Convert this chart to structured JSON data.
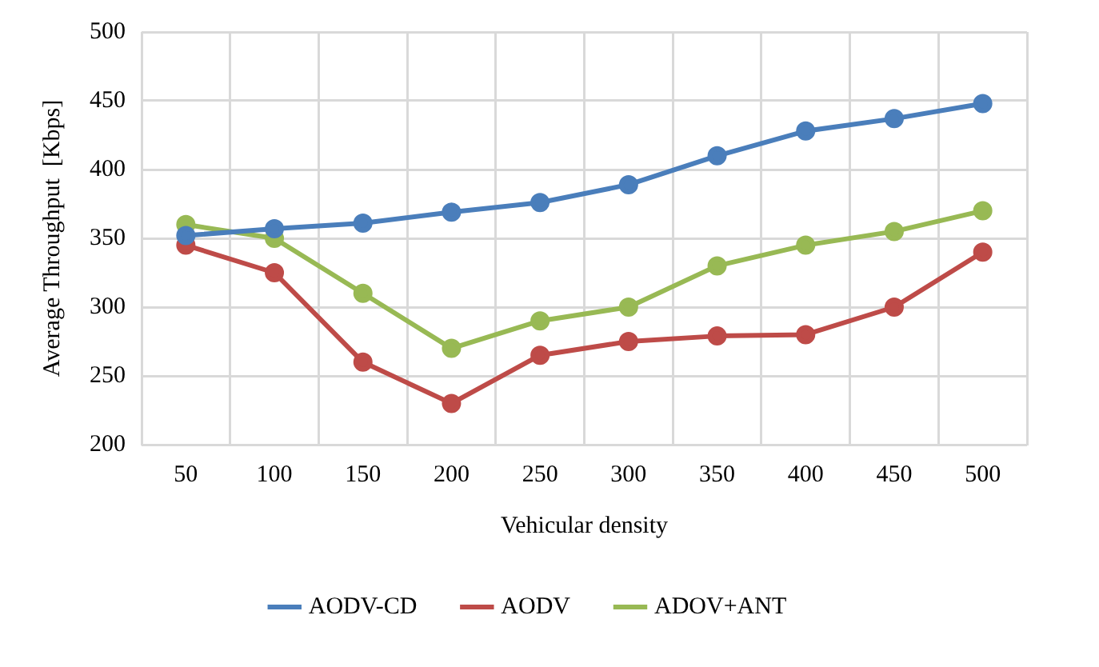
{
  "chart_data": {
    "type": "line",
    "xlabel": "Vehicular density",
    "ylabel": "Average Throughput  [Kbps]",
    "categories": [
      "50",
      "100",
      "150",
      "200",
      "250",
      "300",
      "350",
      "400",
      "450",
      "500"
    ],
    "series": [
      {
        "name": "AODV-CD",
        "color": "#4a7ebb",
        "values": [
          352,
          357,
          361,
          369,
          376,
          389,
          410,
          428,
          437,
          448
        ]
      },
      {
        "name": "AODV",
        "color": "#be4b48",
        "values": [
          345,
          325,
          260,
          230,
          265,
          275,
          279,
          280,
          300,
          340
        ]
      },
      {
        "name": "ADOV+ANT",
        "color": "#98b954",
        "values": [
          360,
          350,
          310,
          270,
          290,
          300,
          330,
          345,
          355,
          370
        ]
      }
    ],
    "ylim": [
      200,
      500
    ],
    "yticks": [
      200,
      250,
      300,
      350,
      400,
      450,
      500
    ],
    "grid": true,
    "legend": "bottom",
    "marker": "circle",
    "line_style": "solid"
  }
}
